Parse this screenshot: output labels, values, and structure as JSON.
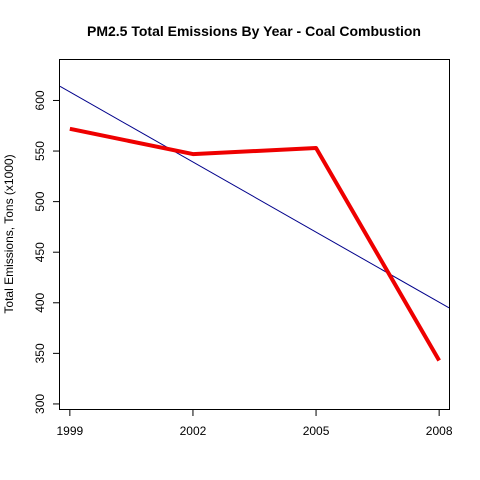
{
  "chart_data": {
    "type": "line",
    "title": "PM2.5 Total Emissions By Year - Coal Combustion",
    "xlabel": "",
    "ylabel": "Total Emissions, Tons (x1000)",
    "x": [
      1999,
      2002,
      2005,
      2008
    ],
    "x_ticks": [
      "1999",
      "2002",
      "2005",
      "2008"
    ],
    "y_ticks": [
      "300",
      "350",
      "400",
      "450",
      "500",
      "550",
      "600"
    ],
    "xlim": [
      1998.76,
      2008.24
    ],
    "ylim": [
      295,
      640
    ],
    "series": [
      {
        "values": [
          572,
          547,
          553,
          343
        ],
        "color": "#ee0000"
      }
    ],
    "trend_line": {
      "x": [
        1998.76,
        2008.24
      ],
      "y": [
        614,
        395
      ],
      "color": "#00008b"
    },
    "grid": false,
    "legend": "none"
  }
}
